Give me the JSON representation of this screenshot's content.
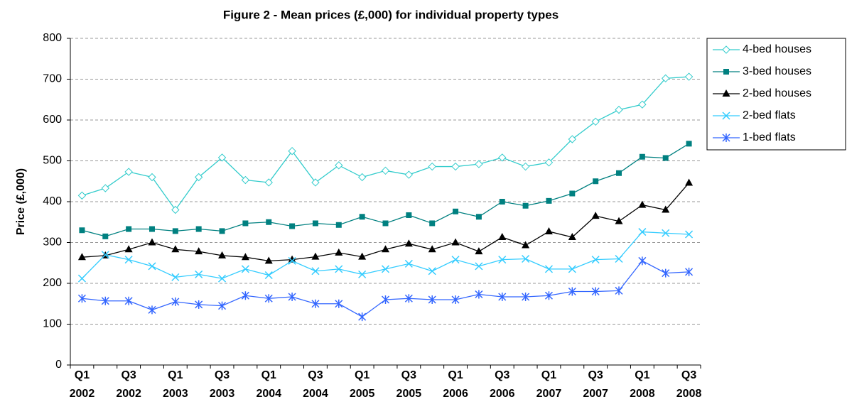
{
  "chart_data": {
    "type": "line",
    "title": "Figure 2 - Mean prices (£,000) for individual property types",
    "y_label": "Price (£,000)",
    "categories": [
      "Q1 2002",
      null,
      "Q3 2002",
      null,
      "Q1 2003",
      null,
      "Q3 2003",
      null,
      "Q1 2004",
      null,
      "Q3 2004",
      null,
      "Q1 2005",
      null,
      "Q3 2005",
      null,
      "Q1 2006",
      null,
      "Q3 2006",
      null,
      "Q1 2007",
      null,
      "Q3 2007",
      null,
      "Q1 2008",
      null,
      "Q3 2008"
    ],
    "ylim": [
      0,
      800
    ],
    "yticks": [
      0,
      100,
      200,
      300,
      400,
      500,
      600,
      700,
      800
    ],
    "grid": true,
    "legend": "right",
    "series": [
      {
        "name": "4-bed houses",
        "color": "#33cccc",
        "marker": "diamond",
        "values": [
          415,
          433,
          473,
          460,
          380,
          460,
          508,
          453,
          447,
          524,
          447,
          489,
          460,
          476,
          466,
          486,
          486,
          492,
          508,
          486,
          496,
          553,
          596,
          625,
          638,
          702,
          706
        ]
      },
      {
        "name": "3-bed houses",
        "color": "#008080",
        "marker": "square",
        "values": [
          330,
          315,
          333,
          333,
          328,
          333,
          328,
          347,
          350,
          340,
          347,
          343,
          363,
          347,
          367,
          347,
          376,
          363,
          400,
          390,
          402,
          420,
          450,
          470,
          510,
          507,
          542
        ]
      },
      {
        "name": "2-bed houses",
        "color": "#000000",
        "marker": "triangle",
        "values": [
          264,
          268,
          283,
          300,
          283,
          278,
          268,
          264,
          255,
          258,
          265,
          275,
          265,
          283,
          297,
          283,
          300,
          278,
          313,
          293,
          327,
          313,
          365,
          352,
          392,
          380,
          446
        ]
      },
      {
        "name": "2-bed flats",
        "color": "#33ccff",
        "marker": "x",
        "values": [
          212,
          270,
          258,
          242,
          215,
          222,
          212,
          235,
          220,
          255,
          230,
          235,
          222,
          235,
          248,
          230,
          258,
          242,
          258,
          260,
          235,
          235,
          258,
          260,
          326,
          323,
          320
        ]
      },
      {
        "name": "1-bed flats",
        "color": "#3366ff",
        "marker": "star",
        "values": [
          163,
          157,
          157,
          135,
          155,
          148,
          145,
          170,
          163,
          167,
          150,
          150,
          118,
          160,
          163,
          160,
          160,
          173,
          167,
          167,
          170,
          180,
          180,
          182,
          255,
          225,
          228
        ]
      }
    ]
  }
}
